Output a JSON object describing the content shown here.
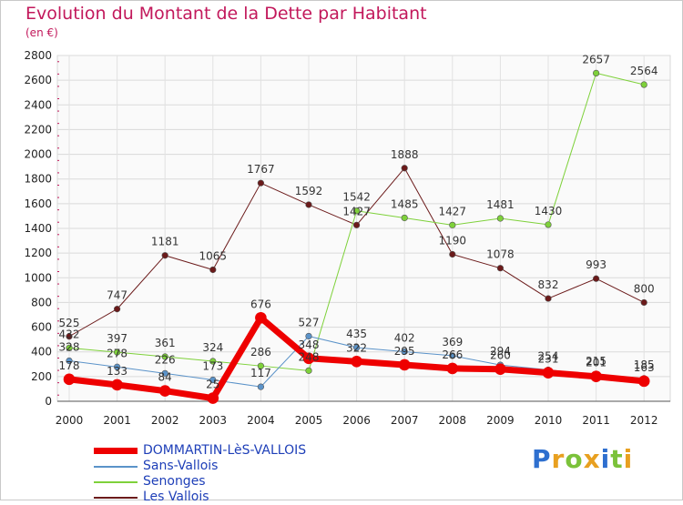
{
  "chart_data": {
    "type": "line",
    "title": "Evolution du Montant de la Dette par Habitant",
    "subtitle": "(en €)",
    "x": [
      "2000",
      "2001",
      "2002",
      "2003",
      "2004",
      "2005",
      "2006",
      "2007",
      "2008",
      "2009",
      "2010",
      "2011",
      "2012"
    ],
    "y_ticks": [
      "0",
      "200",
      "400",
      "600",
      "800",
      "1000",
      "1200",
      "1400",
      "1600",
      "1800",
      "2000",
      "2200",
      "2400",
      "2600",
      "2800"
    ],
    "ylim": [
      0,
      2800
    ],
    "grid": true,
    "legend_position": "bottom-left",
    "series": [
      {
        "name": "Les Vallois",
        "color": "#6b1a1a",
        "width": 1,
        "values": [
          525,
          747,
          1181,
          1065,
          1767,
          1592,
          1427,
          1888,
          1190,
          1078,
          832,
          993,
          800
        ],
        "labels": [
          "525",
          "747",
          "1181",
          "1065",
          "1767",
          "1592",
          "1427",
          "1888",
          "1190",
          "1078",
          "832",
          "993",
          "800"
        ]
      },
      {
        "name": "Senonges",
        "color": "#7ed13a",
        "width": 1,
        "values": [
          432,
          397,
          361,
          324,
          286,
          248,
          1542,
          1485,
          1427,
          1481,
          1430,
          2657,
          2564
        ],
        "labels": [
          "432",
          "397",
          "361",
          "324",
          "286",
          "248",
          "1542",
          "1485",
          "1427",
          "1481",
          "1430",
          "2657",
          "2564"
        ]
      },
      {
        "name": "Sans-Vallois",
        "color": "#5b93c9",
        "width": 1,
        "values": [
          328,
          278,
          226,
          173,
          117,
          527,
          435,
          402,
          369,
          294,
          254,
          215,
          185
        ],
        "labels": [
          "328",
          "278",
          "226",
          "173",
          "117",
          "527",
          "435",
          "402",
          "369",
          "294",
          "254",
          "215",
          "185"
        ]
      },
      {
        "name": "DOMMARTIN-LèS-VALLOIS",
        "color": "#ee0000",
        "width": 7,
        "values": [
          178,
          133,
          84,
          25,
          676,
          348,
          322,
          295,
          266,
          260,
          231,
          201,
          163
        ],
        "labels": [
          "178",
          "133",
          "84",
          "25",
          "676",
          "348",
          "322",
          "295",
          "266",
          "260",
          "231",
          "201",
          "163"
        ]
      }
    ]
  },
  "legend": [
    {
      "name": "DOMMARTIN-LèS-VALLOIS",
      "color": "#ee0000",
      "thick": true
    },
    {
      "name": "Sans-Vallois",
      "color": "#5b93c9",
      "thick": false
    },
    {
      "name": "Senonges",
      "color": "#7ed13a",
      "thick": false
    },
    {
      "name": "Les Vallois",
      "color": "#6b1a1a",
      "thick": false
    }
  ],
  "logo": {
    "letters": [
      "P",
      "r",
      "o",
      "x",
      "i",
      "t",
      "i"
    ],
    "colors": [
      "#2e6fcf",
      "#e8a020",
      "#7bc23a",
      "#e8a020",
      "#2e6fcf",
      "#7bc23a",
      "#e8a020"
    ]
  }
}
